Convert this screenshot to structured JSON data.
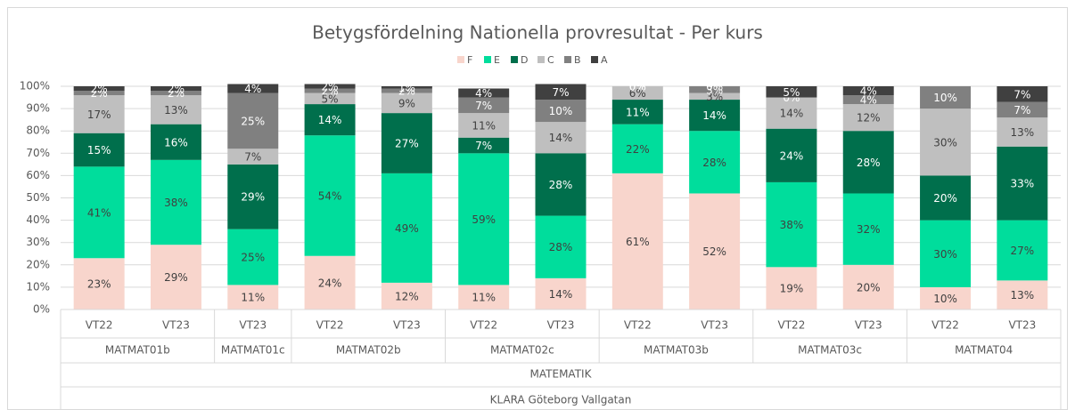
{
  "chart_data": {
    "type": "stacked_bar",
    "title": "Betygsfördelning Nationella provresultat - Per kurs",
    "groups": [
      {
        "name": "MATMAT01b",
        "periods": [
          "VT22",
          "VT23"
        ]
      },
      {
        "name": "MATMAT01c",
        "periods": [
          "VT23"
        ]
      },
      {
        "name": "MATMAT02b",
        "periods": [
          "VT22",
          "VT23"
        ]
      },
      {
        "name": "MATMAT02c",
        "periods": [
          "VT22",
          "VT23"
        ]
      },
      {
        "name": "MATMAT03b",
        "periods": [
          "VT22",
          "VT23"
        ]
      },
      {
        "name": "MATMAT03c",
        "periods": [
          "VT22",
          "VT23"
        ]
      },
      {
        "name": "MATMAT04",
        "periods": [
          "VT22",
          "VT23"
        ]
      }
    ],
    "subject": "MATEMATIK",
    "school": "KLARA Göteborg Vallgatan",
    "series": [
      {
        "name": "F",
        "color": "#f8d5cc",
        "values": [
          23,
          29,
          11,
          24,
          12,
          11,
          14,
          61,
          52,
          19,
          20,
          10,
          13
        ],
        "value_labels": [
          "23%",
          "29%",
          "11%",
          "24%",
          "12%",
          "11%",
          "14%",
          "61%",
          "52%",
          "19%",
          "20%",
          "10%",
          "13%"
        ]
      },
      {
        "name": "E",
        "color": "#00dd9c",
        "values": [
          41,
          38,
          25,
          54,
          49,
          59,
          28,
          22,
          28,
          38,
          32,
          30,
          27
        ],
        "value_labels": [
          "41%",
          "38%",
          "25%",
          "54%",
          "49%",
          "59%",
          "28%",
          "22%",
          "28%",
          "38%",
          "32%",
          "30%",
          "27%"
        ]
      },
      {
        "name": "D",
        "color": "#006f4c",
        "values": [
          15,
          16,
          29,
          14,
          27,
          7,
          28,
          11,
          14,
          24,
          28,
          20,
          33
        ],
        "value_labels": [
          "15%",
          "16%",
          "29%",
          "14%",
          "27%",
          "7%",
          "28%",
          "11%",
          "14%",
          "24%",
          "28%",
          "20%",
          "33%"
        ]
      },
      {
        "name": "C",
        "color": "#bfbfbf",
        "values": [
          17,
          13,
          7,
          5,
          9,
          11,
          14,
          6,
          3,
          14,
          12,
          30,
          13
        ],
        "value_labels": [
          "17%",
          "13%",
          "7%",
          "5%",
          "9%",
          "11%",
          "14%",
          "6%",
          "3%",
          "14%",
          "12%",
          "30%",
          "13%"
        ]
      },
      {
        "name": "B",
        "color": "#808080",
        "values": [
          2,
          2,
          25,
          2,
          2,
          7,
          10,
          0,
          3,
          0,
          4,
          10,
          7
        ],
        "value_labels": [
          "2%",
          "2%",
          "25%",
          "2%",
          "2%",
          "7%",
          "10%",
          "0%",
          "3%",
          "0%",
          "4%",
          "10%",
          "7%"
        ]
      },
      {
        "name": "A",
        "color": "#404040",
        "values": [
          2,
          2,
          4,
          2,
          1,
          4,
          7,
          0,
          0,
          5,
          4,
          null,
          7
        ],
        "value_labels": [
          "2%",
          "2%",
          "4%",
          "2%",
          "1%",
          "4%",
          "7%",
          "0%",
          "0%",
          "5%",
          "4%",
          null,
          "7%"
        ]
      }
    ],
    "ylim": [
      0,
      100
    ],
    "yticks": [
      {
        "value": 0,
        "label": "0%"
      },
      {
        "value": 10,
        "label": "10%"
      },
      {
        "value": 20,
        "label": "20%"
      },
      {
        "value": 30,
        "label": "30%"
      },
      {
        "value": 40,
        "label": "40%"
      },
      {
        "value": 50,
        "label": "50%"
      },
      {
        "value": 60,
        "label": "60%"
      },
      {
        "value": 70,
        "label": "70%"
      },
      {
        "value": 80,
        "label": "80%"
      },
      {
        "value": 90,
        "label": "90%"
      },
      {
        "value": 100,
        "label": "100%"
      }
    ],
    "grid": true,
    "legend": "top"
  }
}
